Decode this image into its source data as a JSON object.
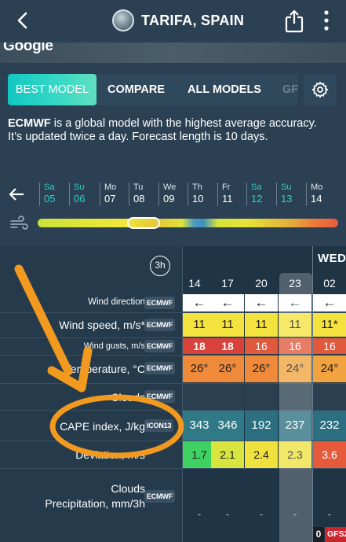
{
  "header": {
    "title": "TARIFA, SPAIN"
  },
  "map": {
    "logo": "Google"
  },
  "tabs": [
    {
      "label": "BEST MODEL",
      "active": true
    },
    {
      "label": "COMPARE"
    },
    {
      "label": "ALL MODELS"
    },
    {
      "label": "GF"
    }
  ],
  "description": {
    "model": "ECMWF",
    "text": " is a global model with the highest average accuracy. It’s updated twice a day. Forecast length is 10 days."
  },
  "days": [
    {
      "name": "Sa",
      "date": "05",
      "weekend": true
    },
    {
      "name": "Su",
      "date": "06",
      "weekend": true
    },
    {
      "name": "Mo",
      "date": "07"
    },
    {
      "name": "Tu",
      "date": "08"
    },
    {
      "name": "We",
      "date": "09"
    },
    {
      "name": "Th",
      "date": "10"
    },
    {
      "name": "Fr",
      "date": "11"
    },
    {
      "name": "Sa",
      "date": "12",
      "weekend": true
    },
    {
      "name": "Su",
      "date": "13",
      "weekend": true
    },
    {
      "name": "Mo",
      "date": "14"
    }
  ],
  "table": {
    "step": "3h",
    "day_label": "WED",
    "hours": [
      "14",
      "17",
      "20",
      "23",
      "02"
    ],
    "rows": [
      {
        "label": "Wind direction",
        "model": "ECMWF",
        "cells": [
          "←",
          "←",
          "←",
          "←",
          "←"
        ]
      },
      {
        "label": "Wind speed, m/s*",
        "model": "ECMWF",
        "cells": [
          "11",
          "11",
          "11",
          "11",
          "11*"
        ]
      },
      {
        "label": "Wind gusts, m/s",
        "model": "ECMWF",
        "cells": [
          "18",
          "18",
          "16",
          "16",
          "16"
        ]
      },
      {
        "label": "Temperature, °C",
        "model": "ECMWF",
        "cells": [
          "26°",
          "26°",
          "26°",
          "24°",
          "24°"
        ]
      },
      {
        "label": "Clouds",
        "model": "ECMWF",
        "cells": [
          "",
          "",
          "",
          "",
          ""
        ]
      },
      {
        "label": "CAPE index, J/kg",
        "model": "ICON13",
        "cells": [
          "343",
          "346",
          "192",
          "237",
          "232"
        ]
      },
      {
        "label": "Deviation, m/s",
        "model": "",
        "cells": [
          "1.7",
          "2.1",
          "2.4",
          "2.3",
          "3.6"
        ]
      },
      {
        "label": "Clouds",
        "label2": "Precipitation, mm/3h",
        "model": "ECMWF",
        "cells": [
          "-",
          "-",
          "-",
          "-",
          "-"
        ]
      }
    ],
    "footer": {
      "value": "0",
      "model": "GFS2"
    }
  },
  "colors": {
    "accent": "#2fd0c4",
    "annotation": "#f29a1f"
  }
}
